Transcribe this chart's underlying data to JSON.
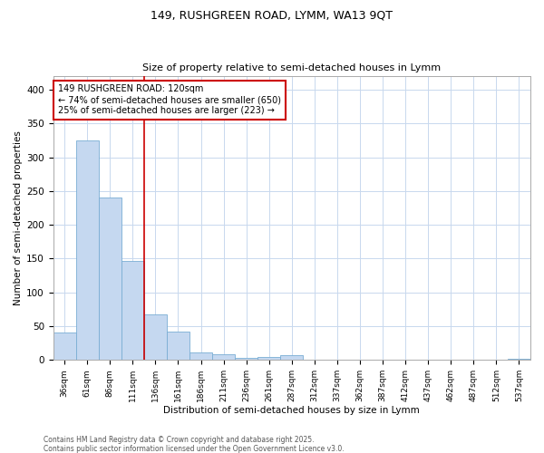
{
  "title1": "149, RUSHGREEN ROAD, LYMM, WA13 9QT",
  "title2": "Size of property relative to semi-detached houses in Lymm",
  "xlabel": "Distribution of semi-detached houses by size in Lymm",
  "ylabel": "Number of semi-detached properties",
  "categories": [
    "36sqm",
    "61sqm",
    "86sqm",
    "111sqm",
    "136sqm",
    "161sqm",
    "186sqm",
    "211sqm",
    "236sqm",
    "261sqm",
    "287sqm",
    "312sqm",
    "337sqm",
    "362sqm",
    "387sqm",
    "412sqm",
    "437sqm",
    "462sqm",
    "487sqm",
    "512sqm",
    "537sqm"
  ],
  "values": [
    40,
    325,
    241,
    147,
    68,
    42,
    11,
    8,
    3,
    5,
    7,
    0,
    0,
    0,
    0,
    0,
    0,
    0,
    0,
    0,
    2
  ],
  "bar_color": "#c5d8f0",
  "bar_edge_color": "#7aadd4",
  "ylim": [
    0,
    420
  ],
  "yticks": [
    0,
    50,
    100,
    150,
    200,
    250,
    300,
    350,
    400
  ],
  "vline_x": 3.5,
  "vline_color": "#cc0000",
  "annotation_text": "149 RUSHGREEN ROAD: 120sqm\n← 74% of semi-detached houses are smaller (650)\n25% of semi-detached houses are larger (223) →",
  "annotation_box_color": "#ffffff",
  "annotation_box_edge": "#cc0000",
  "footer1": "Contains HM Land Registry data © Crown copyright and database right 2025.",
  "footer2": "Contains public sector information licensed under the Open Government Licence v3.0.",
  "background_color": "#ffffff",
  "plot_background": "#ffffff",
  "grid_color": "#c8d8ee"
}
